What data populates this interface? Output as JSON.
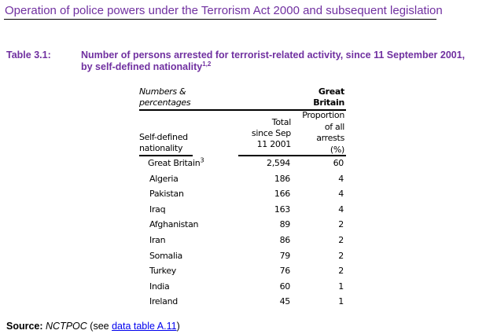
{
  "header": {
    "title": "Operation of police powers under the Terrorism Act 2000 and subsequent legislation"
  },
  "table": {
    "label": "Table 3.1:",
    "title": "Number of persons arrested for terrorist-related activity, since 11 September 2001, by self-defined nationality",
    "title_sup": "1,2",
    "units_line1": "Numbers &",
    "units_line2": "percentages",
    "region_line1": "Great",
    "region_line2": "Britain",
    "col_nationality_1": "Self-defined",
    "col_nationality_2": "nationality",
    "col_total_1": "Total",
    "col_total_2": "since Sep",
    "col_total_3": "11 2001",
    "col_prop_1": "Proportion",
    "col_prop_2": "of all",
    "col_prop_3": "arrests",
    "col_prop_4": "(%)",
    "rows": [
      {
        "nationality": "Great Britain",
        "sup": "3",
        "total": "2,594",
        "pct": "60"
      },
      {
        "nationality": "Algeria",
        "total": "186",
        "pct": "4"
      },
      {
        "nationality": "Pakistan",
        "total": "166",
        "pct": "4"
      },
      {
        "nationality": "Iraq",
        "total": "163",
        "pct": "4"
      },
      {
        "nationality": "Afghanistan",
        "total": "89",
        "pct": "2"
      },
      {
        "nationality": "Iran",
        "total": "86",
        "pct": "2"
      },
      {
        "nationality": "Somalia",
        "total": "79",
        "pct": "2"
      },
      {
        "nationality": "Turkey",
        "total": "76",
        "pct": "2"
      },
      {
        "nationality": "India",
        "total": "60",
        "pct": "1"
      },
      {
        "nationality": "Ireland",
        "total": "45",
        "pct": "1"
      }
    ]
  },
  "source": {
    "label": "Source:",
    "text": "NCTPOC",
    "pre": " (see ",
    "link": "data table A.11",
    "post": ")"
  }
}
